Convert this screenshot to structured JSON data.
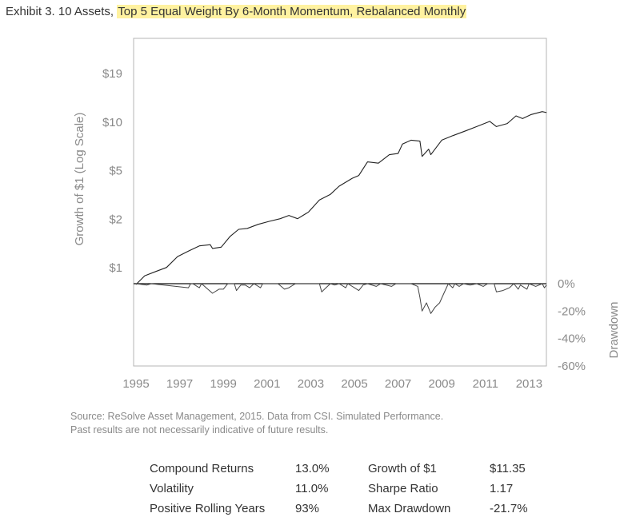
{
  "title": {
    "prefix": "Exhibit 3. 10 Assets, ",
    "highlight": "Top 5 Equal Weight By 6-Month Momentum, Rebalanced Monthly",
    "highlight_color": "#fff2a0"
  },
  "chart_data": [
    {
      "type": "line",
      "ylabel": "Growth of $1 (Log Scale)",
      "yscale": "log",
      "y_tick_labels": [
        "$19",
        "$10",
        "$5",
        "$2",
        "$1"
      ],
      "x_tick_labels": [
        "1995",
        "1997",
        "1999",
        "2001",
        "2003",
        "2005",
        "2007",
        "2009",
        "2011",
        "2013"
      ],
      "xlim": [
        1995,
        2013.8
      ],
      "grid": false,
      "series": [
        {
          "color": "#222222",
          "x": [
            1995.0,
            1995.4,
            1995.9,
            1996.4,
            1996.9,
            1997.4,
            1997.9,
            1998.4,
            1998.5,
            1998.9,
            1999.3,
            1999.7,
            2000.1,
            2000.6,
            2001.1,
            2001.6,
            2002.0,
            2002.4,
            2002.9,
            2003.4,
            2003.9,
            2004.3,
            2004.9,
            2005.2,
            2005.6,
            2006.1,
            2006.6,
            2007.0,
            2007.2,
            2007.6,
            2008.0,
            2008.1,
            2008.4,
            2008.5,
            2009.0,
            2009.5,
            2010.1,
            2010.6,
            2011.2,
            2011.5,
            2012.0,
            2012.4,
            2012.7,
            2013.1,
            2013.6,
            2013.8
          ],
          "y": [
            1.0,
            1.13,
            1.2,
            1.27,
            1.48,
            1.6,
            1.72,
            1.75,
            1.66,
            1.69,
            1.96,
            2.17,
            2.2,
            2.33,
            2.43,
            2.52,
            2.64,
            2.52,
            2.77,
            3.28,
            3.55,
            3.98,
            4.45,
            4.63,
            5.6,
            5.5,
            6.2,
            6.3,
            7.2,
            7.6,
            7.5,
            6.05,
            6.7,
            6.2,
            7.6,
            8.1,
            8.67,
            9.2,
            9.9,
            9.2,
            9.6,
            10.7,
            10.3,
            10.9,
            11.35,
            11.2
          ]
        }
      ]
    },
    {
      "type": "line",
      "ylabel": "Drawdown",
      "y_tick_labels": [
        "0%",
        "-20%",
        "-40%",
        "-60%"
      ],
      "ylim": [
        -60,
        0
      ],
      "series": [
        {
          "color": "#222222",
          "x": [
            1995.0,
            1995.5,
            1995.7,
            1997.4,
            1997.5,
            1997.6,
            1997.8,
            1997.9,
            1998.0,
            1998.5,
            1998.8,
            1999.0,
            1999.1,
            1999.2,
            1999.5,
            1999.6,
            1999.8,
            2000.0,
            2000.2,
            2000.4,
            2000.7,
            2000.8,
            2001.5,
            2001.8,
            2002.0,
            2002.3,
            2003.4,
            2003.5,
            2003.7,
            2003.9,
            2004.1,
            2004.3,
            2004.6,
            2004.7,
            2005.0,
            2005.2,
            2005.4,
            2005.6,
            2006.0,
            2006.2,
            2006.7,
            2006.9,
            2007.6,
            2007.9,
            2008.0,
            2008.1,
            2008.3,
            2008.5,
            2008.7,
            2008.9,
            2009.1,
            2009.3,
            2009.5,
            2009.6,
            2009.8,
            2010.0,
            2010.3,
            2010.6,
            2010.9,
            2011.1,
            2011.4,
            2011.5,
            2011.8,
            2012.1,
            2012.3,
            2012.5,
            2012.6,
            2012.9,
            2013.0,
            2013.3,
            2013.6,
            2013.7,
            2013.8
          ],
          "y": [
            0,
            -1,
            0,
            -3,
            0,
            0,
            -2,
            -3,
            0,
            -7,
            -4,
            -4,
            -2,
            0,
            0,
            -5,
            -1,
            -1,
            -3,
            0,
            -3,
            0,
            0,
            -4,
            -3,
            0,
            0,
            -6,
            -3,
            0,
            -1,
            0,
            -3,
            0,
            -3,
            -5,
            -1,
            0,
            -2,
            0,
            -2,
            0,
            0,
            -2,
            -10,
            -20,
            -14,
            -21.7,
            -17,
            -14,
            -7,
            0,
            -3,
            0,
            -2,
            0,
            -1,
            0,
            -2,
            0,
            0,
            -6,
            -5,
            -3,
            0,
            -4,
            -1,
            -4,
            0,
            -2,
            0,
            -3,
            -1
          ]
        }
      ]
    }
  ],
  "source": {
    "line1": "Source: ReSolve Asset Management, 2015. Data from CSI. Simulated Performance.",
    "line2": "Past results are not necessarily indicative of future results."
  },
  "stats": {
    "left": [
      {
        "label": "Compound Returns",
        "value": "13.0%"
      },
      {
        "label": "Volatility",
        "value": "11.0%"
      },
      {
        "label": "Positive Rolling Years",
        "value": "93%"
      }
    ],
    "right": [
      {
        "label": "Growth of $1",
        "value": "$11.35"
      },
      {
        "label": "Sharpe Ratio",
        "value": "1.17"
      },
      {
        "label": "Max Drawdown",
        "value": "-21.7%"
      }
    ]
  }
}
